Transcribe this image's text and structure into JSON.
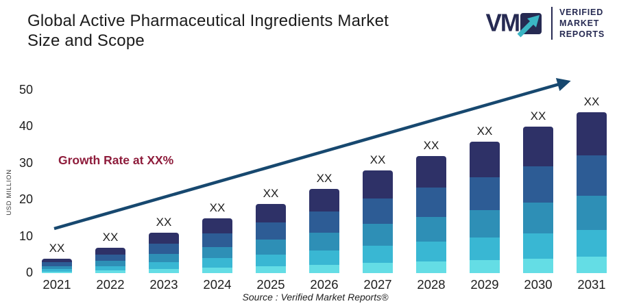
{
  "header": {
    "title_line1": "Global Active Pharmaceutical Ingredients Market",
    "title_line2": "Size and Scope"
  },
  "logo": {
    "mark": "VM",
    "lines": [
      "VERIFIED",
      "MARKET",
      "REPORTS"
    ],
    "navy": "#262A52",
    "teal": "#3BB5C4"
  },
  "annotations": {
    "growth_rate": "Growth Rate at XX%",
    "growth_color": "#8E1C3B",
    "source": "Source :  Verified Market Reports®"
  },
  "chart_data": {
    "type": "bar",
    "stacked": true,
    "title": "Global Active Pharmaceutical Ingredients Market Size and Scope",
    "xlabel": "",
    "ylabel": "USD MILLION",
    "ylim": [
      0,
      50
    ],
    "y_ticks": [
      0,
      10,
      20,
      30,
      40,
      50
    ],
    "grid": false,
    "legend": false,
    "categories": [
      "2021",
      "2022",
      "2023",
      "2024",
      "2025",
      "2026",
      "2027",
      "2028",
      "2029",
      "2030",
      "2031"
    ],
    "values": [
      4,
      7,
      11,
      15,
      19,
      23,
      28,
      32,
      36,
      40,
      44
    ],
    "bar_label": "XX",
    "segment_fractions": [
      0.27,
      0.25,
      0.21,
      0.17,
      0.1
    ],
    "segment_colors": [
      "#2E3167",
      "#2D5C95",
      "#2E8FB6",
      "#39B7D3",
      "#64DDE5"
    ],
    "trend_arrow": {
      "show": true,
      "color": "#17486F"
    }
  }
}
